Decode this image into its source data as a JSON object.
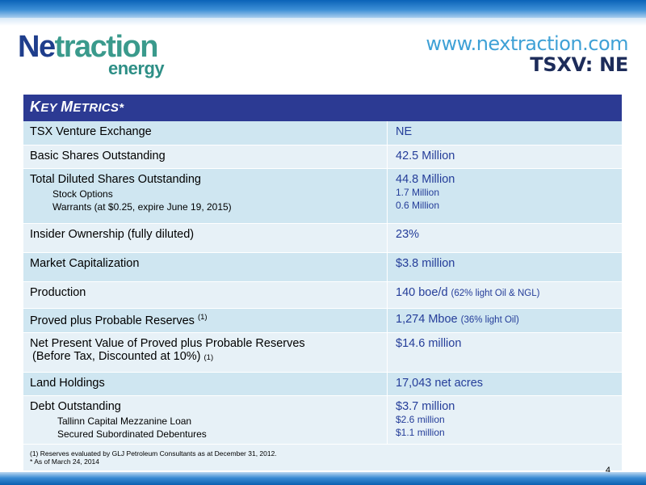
{
  "header": {
    "logo_ne": "Ne",
    "logo_rest": "traction",
    "logo_sub": "energy",
    "url": "www.nextraction.com",
    "ticker": "TSXV: NE"
  },
  "table": {
    "title_k": "K",
    "title_ey": "EY ",
    "title_m": "M",
    "title_etrics": "ETRICS*",
    "rows": [
      {
        "label": "TSX Venture Exchange",
        "value": "NE"
      },
      {
        "label": "Basic Shares Outstanding",
        "value": "42.5 Million"
      },
      {
        "label": "Total Diluted Shares Outstanding",
        "value": "44.8 Million",
        "sub_labels": [
          "Stock Options",
          "Warrants (at $0.25, expire June 19, 2015)"
        ],
        "sub_values": [
          "1.7 Million",
          "0.6 Million"
        ]
      },
      {
        "label": "Insider Ownership (fully diluted)",
        "value": "23%"
      },
      {
        "label": "Market Capitalization",
        "value": "$3.8 million"
      },
      {
        "label": "Production",
        "value": "140 boe/d",
        "value_note": "(62% light Oil & NGL)"
      },
      {
        "label": "Proved plus Probable Reserves",
        "label_fn": "(1)",
        "value": "1,274 Mboe",
        "value_note": "(36% light Oil)"
      },
      {
        "label": "Net Present Value of Proved plus Probable Reserves",
        "label_line2": "(Before Tax, Discounted at 10%)",
        "label_fn": "(1)",
        "value": "$14.6 million"
      },
      {
        "label": "Land Holdings",
        "value": "17,043 net acres"
      },
      {
        "label": "Debt Outstanding",
        "value": "$3.7 million",
        "sub_labels": [
          "Tallinn Capital Mezzanine Loan",
          "Secured Subordinated Debentures"
        ],
        "sub_values": [
          "$2.6 million",
          "$1.1 million"
        ]
      }
    ],
    "footnote_1": "(1)    Reserves evaluated by GLJ Petroleum Consultants as at December 31, 2012.",
    "footnote_2": "* As of March 24, 2014",
    "page_number": "4"
  },
  "colors": {
    "title_bar": "#2c3a93",
    "row_dark": "#cfe6f1",
    "row_light": "#e7f1f7",
    "value_text": "#243d99",
    "brand_blue": "#1f3e8c",
    "brand_teal": "#3a9a8c"
  }
}
